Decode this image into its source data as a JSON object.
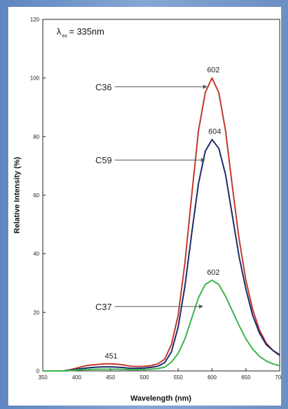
{
  "chart_data": {
    "type": "line",
    "xlabel": "Wavelength (nm)",
    "ylabel": "Relative Intensity (%)",
    "xlim": [
      350,
      700
    ],
    "ylim": [
      0,
      120
    ],
    "x_ticks": [
      350,
      400,
      450,
      500,
      550,
      600,
      650,
      700
    ],
    "y_ticks": [
      0,
      20,
      40,
      60,
      80,
      100,
      120
    ],
    "annotation": {
      "symbol": "λ",
      "subscript": "ex",
      "text": "= 335nm"
    },
    "series": [
      {
        "name": "C36",
        "color": "#c0392b",
        "x": [
          350,
          360,
          370,
          380,
          390,
          400,
          410,
          420,
          430,
          440,
          450,
          460,
          470,
          480,
          490,
          500,
          510,
          520,
          530,
          540,
          550,
          560,
          570,
          580,
          590,
          600,
          610,
          620,
          630,
          640,
          650,
          660,
          670,
          680,
          690,
          700
        ],
        "y": [
          0,
          0,
          0,
          0,
          0.4,
          1.0,
          1.6,
          2.0,
          2.2,
          2.4,
          2.4,
          2.3,
          2.0,
          1.6,
          1.5,
          1.6,
          1.8,
          2.4,
          4.0,
          9,
          19,
          37,
          60,
          82,
          95,
          100,
          95,
          82,
          63,
          45,
          31,
          21,
          14,
          9.5,
          7.0,
          5.2
        ]
      },
      {
        "name": "C59",
        "color": "#1c2a6b",
        "x": [
          350,
          360,
          370,
          380,
          390,
          400,
          410,
          420,
          430,
          440,
          450,
          460,
          470,
          480,
          490,
          500,
          510,
          520,
          530,
          540,
          550,
          560,
          570,
          580,
          590,
          600,
          610,
          620,
          630,
          640,
          650,
          660,
          670,
          680,
          690,
          700
        ],
        "y": [
          0,
          0,
          0,
          0,
          0.2,
          0.6,
          0.9,
          1.1,
          1.3,
          1.4,
          1.4,
          1.3,
          1.1,
          0.9,
          0.9,
          1.0,
          1.2,
          1.6,
          2.8,
          6.5,
          15,
          29,
          47,
          64,
          75,
          79,
          76,
          67,
          53,
          39,
          28,
          19,
          13,
          9,
          7,
          5.5
        ]
      },
      {
        "name": "C37",
        "color": "#39b54a",
        "x": [
          350,
          360,
          370,
          380,
          390,
          400,
          410,
          420,
          430,
          440,
          450,
          460,
          470,
          480,
          490,
          500,
          510,
          520,
          530,
          540,
          550,
          560,
          570,
          580,
          590,
          600,
          610,
          620,
          630,
          640,
          650,
          660,
          670,
          680,
          690,
          700
        ],
        "y": [
          0,
          0,
          0,
          0,
          0.1,
          0.3,
          0.4,
          0.5,
          0.6,
          0.6,
          0.6,
          0.6,
          0.5,
          0.4,
          0.4,
          0.5,
          0.6,
          0.8,
          1.3,
          3,
          6,
          11,
          18,
          25,
          29.5,
          31,
          29.5,
          25.5,
          20.5,
          15.5,
          11,
          7.5,
          5.0,
          3.4,
          2.4,
          1.8
        ]
      }
    ],
    "peak_labels": [
      {
        "text": "602",
        "x": 602,
        "y": 100
      },
      {
        "text": "604",
        "x": 604,
        "y": 79
      },
      {
        "text": "602",
        "x": 602,
        "y": 31
      },
      {
        "text": "451",
        "x": 451,
        "y": 2.4
      }
    ],
    "series_labels": [
      {
        "text": "C36",
        "label_x": 452,
        "label_y": 97,
        "arrow_x": 593,
        "arrow_y": 97
      },
      {
        "text": "C59",
        "label_x": 452,
        "label_y": 72,
        "arrow_x": 590,
        "arrow_y": 72
      },
      {
        "text": "C37",
        "label_x": 452,
        "label_y": 22,
        "arrow_x": 587,
        "arrow_y": 22
      }
    ]
  }
}
